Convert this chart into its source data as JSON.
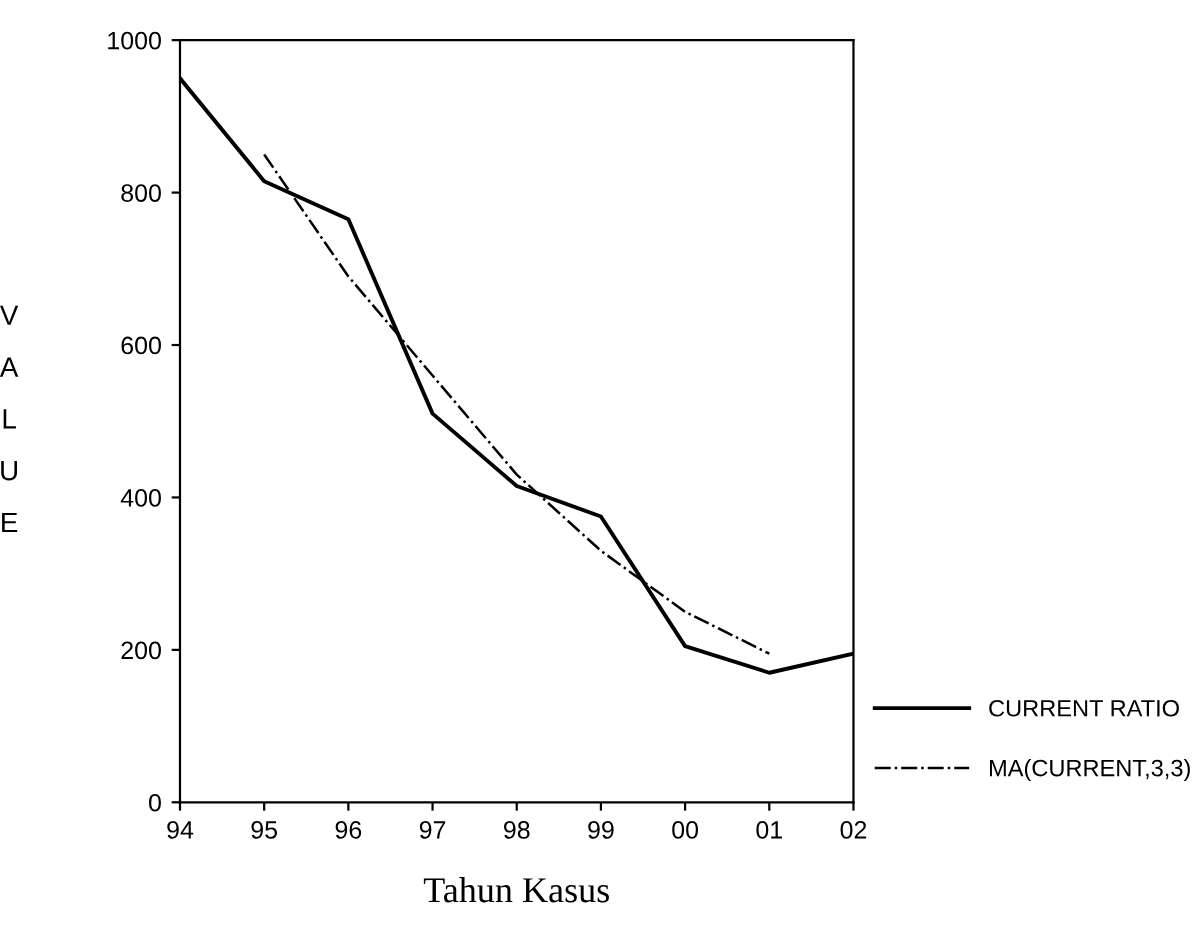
{
  "chart_data": {
    "type": "line",
    "xlabel": "Tahun Kasus",
    "ylabel": "VALUE",
    "categories": [
      "94",
      "95",
      "96",
      "97",
      "98",
      "99",
      "00",
      "01",
      "02"
    ],
    "series": [
      {
        "name": "CURRENT RATIO",
        "color": "#000000",
        "line_style": "solid",
        "values": [
          950,
          815,
          765,
          510,
          415,
          375,
          205,
          170,
          195
        ]
      },
      {
        "name": "MA(CURRENT,3,3)",
        "color": "#000000",
        "line_style": "dashdot",
        "values": [
          null,
          850,
          690,
          560,
          430,
          330,
          250,
          195,
          null
        ]
      }
    ],
    "ylim": [
      0,
      1000
    ],
    "yticks": [
      0,
      200,
      400,
      600,
      800,
      1000
    ],
    "grid": false,
    "legend": "bottom right",
    "marker": "none"
  }
}
